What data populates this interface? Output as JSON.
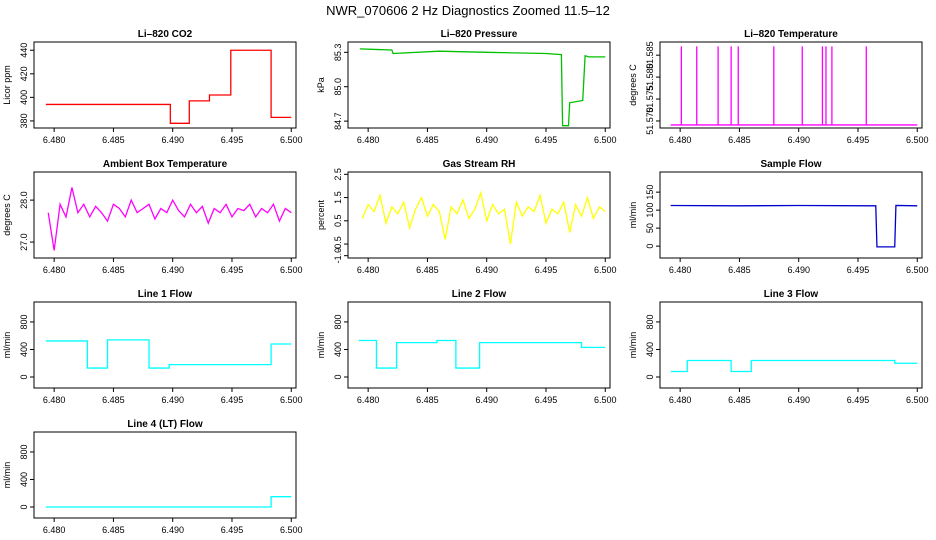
{
  "title": "NWR_070606  2 Hz Diagnostics Zoomed 11.5–12",
  "chart_data": [
    {
      "type": "line",
      "title": "Li–820 CO2",
      "y_label": "Licor ppm",
      "color": "#ff0000",
      "x": [
        6.4793,
        6.4898,
        6.4898,
        6.4914,
        6.4914,
        6.4931,
        6.4931,
        6.4949,
        6.4949,
        6.4983,
        6.4983,
        6.5
      ],
      "values": [
        394,
        394,
        378,
        378,
        397,
        397,
        402,
        402,
        440,
        440,
        383,
        383
      ],
      "xlim": [
        6.4783,
        6.5004
      ],
      "xticks": [
        {
          "value": 6.48,
          "label": "6.480"
        },
        6.485,
        {
          "value": 6.49,
          "label": "6.490"
        },
        6.495,
        {
          "value": 6.5,
          "label": "6.500"
        }
      ],
      "ylim": [
        374,
        447
      ],
      "yticks": [
        380,
        400,
        420,
        440
      ]
    },
    {
      "type": "line",
      "title": "Li–820 Pressure",
      "y_label": "kPa",
      "color": "#00c000",
      "x": [
        6.4793,
        6.482,
        6.4821,
        6.486,
        6.49,
        6.495,
        6.4963,
        6.4964,
        6.4969,
        6.497,
        6.4981,
        6.4983,
        6.4986,
        6.5
      ],
      "values": [
        85.33,
        85.32,
        85.29,
        85.31,
        85.3,
        85.29,
        85.28,
        84.66,
        84.66,
        84.86,
        84.88,
        85.27,
        85.26,
        85.26
      ],
      "xlim": [
        6.4783,
        6.5004
      ],
      "xticks": [
        {
          "value": 6.48,
          "label": "6.480"
        },
        6.485,
        {
          "value": 6.49,
          "label": "6.490"
        },
        6.495,
        {
          "value": 6.5,
          "label": "6.500"
        }
      ],
      "ylim": [
        84.64,
        85.39
      ],
      "yticks": [
        84.7,
        {
          "value": 85,
          "label": "85.0"
        },
        85.3
      ]
    },
    {
      "type": "line",
      "title": "Li–820 Temperature",
      "y_label": "degrees C",
      "color": "#ff00ff",
      "x": [
        6.4792,
        6.4801,
        6.4801,
        6.4801,
        6.4814,
        6.4814,
        6.4814,
        6.4832,
        6.4832,
        6.4832,
        6.4843,
        6.4843,
        6.4843,
        6.4849,
        6.4849,
        6.4849,
        6.4879,
        6.4879,
        6.4879,
        6.4903,
        6.4903,
        6.4903,
        6.492,
        6.492,
        6.492,
        6.4923,
        6.4923,
        6.4923,
        6.4928,
        6.4928,
        6.4928,
        6.4957,
        6.4957,
        6.4957,
        6.5
      ],
      "values": [
        51.5691,
        51.5691,
        51.587,
        51.5691,
        51.5691,
        51.587,
        51.5691,
        51.5691,
        51.587,
        51.5691,
        51.5691,
        51.587,
        51.5691,
        51.5691,
        51.587,
        51.5691,
        51.5691,
        51.587,
        51.5691,
        51.5691,
        51.587,
        51.5691,
        51.5691,
        51.587,
        51.5691,
        51.5691,
        51.587,
        51.5691,
        51.5691,
        51.587,
        51.5691,
        51.5691,
        51.587,
        51.5691,
        51.5691
      ],
      "xlim": [
        6.4783,
        6.5004
      ],
      "xticks": [
        {
          "value": 6.48,
          "label": "6.480"
        },
        6.485,
        {
          "value": 6.49,
          "label": "6.490"
        },
        6.495,
        {
          "value": 6.5,
          "label": "6.500"
        }
      ],
      "ylim": [
        51.5684,
        51.588
      ],
      "yticks": [
        {
          "value": 51.57,
          "label": "51.570"
        },
        51.575,
        {
          "value": 51.58,
          "label": "51.580"
        },
        51.585
      ]
    },
    {
      "type": "line",
      "title": "Ambient Box Temperature",
      "y_label": "degrees C",
      "color": "#ff00ff",
      "x": [
        6.4795,
        6.48,
        6.4805,
        6.481,
        6.4815,
        6.482,
        6.4825,
        6.483,
        6.4835,
        6.484,
        6.4845,
        6.485,
        6.4855,
        6.486,
        6.4865,
        6.487,
        6.4875,
        6.488,
        6.4885,
        6.489,
        6.4895,
        6.49,
        6.4905,
        6.491,
        6.4915,
        6.492,
        6.4925,
        6.493,
        6.4935,
        6.494,
        6.4945,
        6.495,
        6.4955,
        6.496,
        6.4965,
        6.497,
        6.4975,
        6.498,
        6.4985,
        6.499,
        6.4995,
        6.5
      ],
      "values": [
        27.7,
        26.8,
        27.9,
        27.6,
        28.3,
        27.7,
        27.9,
        27.6,
        27.85,
        27.7,
        27.5,
        27.9,
        27.8,
        27.6,
        28.0,
        27.7,
        27.8,
        27.9,
        27.55,
        27.8,
        27.7,
        28.0,
        27.75,
        27.6,
        27.9,
        27.7,
        27.85,
        27.45,
        27.8,
        27.7,
        27.9,
        27.6,
        27.8,
        27.75,
        27.9,
        27.6,
        27.8,
        27.7,
        27.9,
        27.5,
        27.8,
        27.7
      ],
      "xlim": [
        6.4783,
        6.5004
      ],
      "xticks": [
        {
          "value": 6.48,
          "label": "6.480"
        },
        6.485,
        {
          "value": 6.49,
          "label": "6.490"
        },
        6.495,
        {
          "value": 6.5,
          "label": "6.500"
        }
      ],
      "ylim": [
        26.62,
        28.67
      ],
      "yticks": [
        {
          "value": 27,
          "label": "27.0"
        },
        {
          "value": 28,
          "label": "28.0"
        }
      ]
    },
    {
      "type": "line",
      "title": "Gas Stream RH",
      "y_label": "percent",
      "color": "#ffff00",
      "x": [
        6.4795,
        6.48,
        6.4805,
        6.481,
        6.4815,
        6.482,
        6.4825,
        6.483,
        6.4835,
        6.484,
        6.4845,
        6.485,
        6.4855,
        6.486,
        6.4865,
        6.487,
        6.4875,
        6.488,
        6.4885,
        6.489,
        6.4895,
        6.49,
        6.4905,
        6.491,
        6.4915,
        6.492,
        6.4925,
        6.493,
        6.4935,
        6.494,
        6.4945,
        6.495,
        6.4955,
        6.496,
        6.4965,
        6.497,
        6.4975,
        6.498,
        6.4985,
        6.499,
        6.4995,
        6.5
      ],
      "values": [
        0.6,
        1.2,
        0.9,
        1.6,
        0.4,
        1.1,
        0.8,
        1.3,
        0.2,
        1.0,
        1.5,
        0.7,
        1.2,
        0.9,
        -0.3,
        1.1,
        0.8,
        1.4,
        0.6,
        1.0,
        1.7,
        0.5,
        1.2,
        0.8,
        1.0,
        -0.5,
        1.3,
        0.7,
        1.1,
        0.9,
        1.6,
        0.4,
        1.0,
        0.8,
        1.3,
        0.0,
        1.2,
        0.7,
        1.5,
        0.6,
        1.1,
        0.9
      ],
      "xlim": [
        6.4783,
        6.5004
      ],
      "xticks": [
        {
          "value": 6.48,
          "label": "6.480"
        },
        6.485,
        {
          "value": 6.49,
          "label": "6.490"
        },
        6.495,
        {
          "value": 6.5,
          "label": "6.500"
        }
      ],
      "ylim": [
        -1.1,
        2.6
      ],
      "yticks": [
        {
          "value": -1,
          "label": "-1.0"
        },
        -0.5,
        0.5,
        1.5,
        2.5
      ]
    },
    {
      "type": "line",
      "title": "Sample Flow",
      "y_label": "ml/min",
      "color": "#0000cc",
      "x": [
        6.4792,
        6.485,
        6.49,
        6.4965,
        6.4966,
        6.4981,
        6.4982,
        6.5
      ],
      "values": [
        113,
        112,
        113,
        112,
        -2,
        -2,
        113,
        112
      ],
      "xlim": [
        6.4783,
        6.5004
      ],
      "xticks": [
        {
          "value": 6.48,
          "label": "6.480"
        },
        6.485,
        {
          "value": 6.49,
          "label": "6.490"
        },
        6.495,
        {
          "value": 6.5,
          "label": "6.500"
        }
      ],
      "ylim": [
        -33,
        206
      ],
      "yticks": [
        0,
        50,
        100,
        150
      ]
    },
    {
      "type": "line",
      "title": "Line 1 Flow",
      "y_label": "ml/min",
      "color": "#00ffff",
      "x": [
        6.4793,
        6.4828,
        6.4828,
        6.4845,
        6.4845,
        6.488,
        6.488,
        6.4897,
        6.4897,
        6.4983,
        6.4983,
        6.5
      ],
      "values": [
        524,
        524,
        130,
        130,
        540,
        540,
        130,
        130,
        180,
        180,
        480,
        480
      ],
      "xlim": [
        6.4783,
        6.5004
      ],
      "xticks": [
        {
          "value": 6.48,
          "label": "6.480"
        },
        6.485,
        {
          "value": 6.49,
          "label": "6.490"
        },
        6.495,
        {
          "value": 6.5,
          "label": "6.500"
        }
      ],
      "ylim": [
        -160,
        1090
      ],
      "yticks": [
        0,
        400,
        800
      ]
    },
    {
      "type": "line",
      "title": "Line 2 Flow",
      "y_label": "ml/min",
      "color": "#00ffff",
      "x": [
        6.4792,
        6.4807,
        6.4807,
        6.4824,
        6.4824,
        6.4858,
        6.4858,
        6.4874,
        6.4874,
        6.4894,
        6.4894,
        6.498,
        6.498,
        6.5
      ],
      "values": [
        530,
        530,
        130,
        130,
        500,
        500,
        530,
        530,
        130,
        130,
        500,
        500,
        430,
        430
      ],
      "xlim": [
        6.4783,
        6.5004
      ],
      "xticks": [
        {
          "value": 6.48,
          "label": "6.480"
        },
        6.485,
        {
          "value": 6.49,
          "label": "6.490"
        },
        6.495,
        {
          "value": 6.5,
          "label": "6.500"
        }
      ],
      "ylim": [
        -160,
        1090
      ],
      "yticks": [
        0,
        400,
        800
      ]
    },
    {
      "type": "line",
      "title": "Line 3 Flow",
      "y_label": "ml/min",
      "color": "#00ffff",
      "x": [
        6.4792,
        6.4806,
        6.4806,
        6.4843,
        6.4843,
        6.486,
        6.486,
        6.4981,
        6.4981,
        6.5
      ],
      "values": [
        80,
        80,
        240,
        240,
        80,
        80,
        240,
        240,
        200,
        200
      ],
      "xlim": [
        6.4783,
        6.5004
      ],
      "xticks": [
        {
          "value": 6.48,
          "label": "6.480"
        },
        6.485,
        {
          "value": 6.49,
          "label": "6.490"
        },
        6.495,
        {
          "value": 6.5,
          "label": "6.500"
        }
      ],
      "ylim": [
        -160,
        1090
      ],
      "yticks": [
        0,
        400,
        800
      ]
    },
    {
      "type": "line",
      "title": "Line 4 (LT) Flow",
      "y_label": "ml/min",
      "color": "#00ffff",
      "x": [
        6.4793,
        6.4983,
        6.4983,
        6.5
      ],
      "values": [
        0,
        0,
        150,
        150
      ],
      "xlim": [
        6.4783,
        6.5004
      ],
      "xticks": [
        {
          "value": 6.48,
          "label": "6.480"
        },
        6.485,
        {
          "value": 6.49,
          "label": "6.490"
        },
        6.495,
        {
          "value": 6.5,
          "label": "6.500"
        }
      ],
      "ylim": [
        -160,
        1090
      ],
      "yticks": [
        0,
        400,
        800
      ]
    }
  ]
}
